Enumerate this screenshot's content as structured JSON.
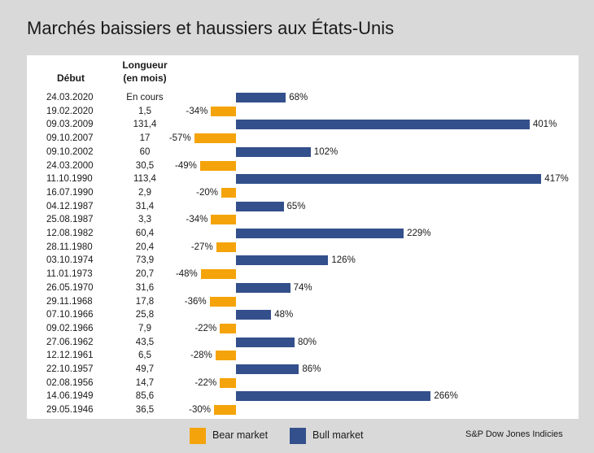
{
  "title": "Marchés baissiers et haussiers aux États-Unis",
  "source": "S&P Dow Jones Indicies",
  "colors": {
    "bear": "#f5a30a",
    "bull": "#334f8c"
  },
  "chart_data": {
    "type": "bar",
    "orientation": "horizontal",
    "headers": {
      "start": "Début",
      "length_line1": "Longueur",
      "length_line2": "(en mois)"
    },
    "legend": [
      {
        "key": "bear",
        "label": "Bear market"
      },
      {
        "key": "bull",
        "label": "Bull market"
      }
    ],
    "legend_placement": "bottom",
    "grid": false,
    "unit": "%",
    "rows": [
      {
        "start": "24.03.2020",
        "length": "En cours",
        "value": 68,
        "type": "bull"
      },
      {
        "start": "19.02.2020",
        "length": "1,5",
        "value": -34,
        "type": "bear"
      },
      {
        "start": "09.03.2009",
        "length": "131,4",
        "value": 401,
        "type": "bull"
      },
      {
        "start": "09.10.2007",
        "length": "17",
        "value": -57,
        "type": "bear"
      },
      {
        "start": "09.10.2002",
        "length": "60",
        "value": 102,
        "type": "bull"
      },
      {
        "start": "24.03.2000",
        "length": "30,5",
        "value": -49,
        "type": "bear"
      },
      {
        "start": "11.10.1990",
        "length": "113,4",
        "value": 417,
        "type": "bull"
      },
      {
        "start": "16.07.1990",
        "length": "2,9",
        "value": -20,
        "type": "bear"
      },
      {
        "start": "04.12.1987",
        "length": "31,4",
        "value": 65,
        "type": "bull"
      },
      {
        "start": "25.08.1987",
        "length": "3,3",
        "value": -34,
        "type": "bear"
      },
      {
        "start": "12.08.1982",
        "length": "60,4",
        "value": 229,
        "type": "bull"
      },
      {
        "start": "28.11.1980",
        "length": "20,4",
        "value": -27,
        "type": "bear"
      },
      {
        "start": "03.10.1974",
        "length": "73,9",
        "value": 126,
        "type": "bull"
      },
      {
        "start": "11.01.1973",
        "length": "20,7",
        "value": -48,
        "type": "bear"
      },
      {
        "start": "26.05.1970",
        "length": "31,6",
        "value": 74,
        "type": "bull"
      },
      {
        "start": "29.11.1968",
        "length": "17,8",
        "value": -36,
        "type": "bear"
      },
      {
        "start": "07.10.1966",
        "length": "25,8",
        "value": 48,
        "type": "bull"
      },
      {
        "start": "09.02.1966",
        "length": "7,9",
        "value": -22,
        "type": "bear"
      },
      {
        "start": "27.06.1962",
        "length": "43,5",
        "value": 80,
        "type": "bull"
      },
      {
        "start": "12.12.1961",
        "length": "6,5",
        "value": -28,
        "type": "bear"
      },
      {
        "start": "22.10.1957",
        "length": "49,7",
        "value": 86,
        "type": "bull"
      },
      {
        "start": "02.08.1956",
        "length": "14,7",
        "value": -22,
        "type": "bear"
      },
      {
        "start": "14.06.1949",
        "length": "85,6",
        "value": 266,
        "type": "bull"
      },
      {
        "start": "29.05.1946",
        "length": "36,5",
        "value": -30,
        "type": "bear"
      }
    ]
  }
}
